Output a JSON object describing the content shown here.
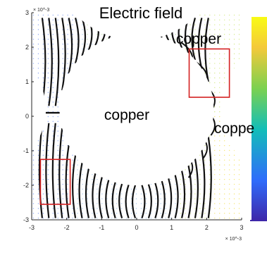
{
  "chart_data": {
    "type": "scatter",
    "title": "Electric field",
    "xlabel": "",
    "ylabel": "",
    "xlim": [
      -3,
      3
    ],
    "ylim": [
      -3,
      3
    ],
    "x_scale_exponent": "× 10^-3",
    "y_scale_exponent": "× 10^-3",
    "x_ticks": [
      "-3",
      "-2",
      "-1",
      "0",
      "1",
      "2",
      "3"
    ],
    "y_ticks": [
      "3",
      "2",
      "1",
      "0",
      "-1",
      "-2",
      "-3"
    ],
    "annotations": [
      "copper",
      "copper",
      "coppe"
    ],
    "grid": false,
    "legend": "none",
    "colormap": "parula",
    "colors": {
      "lines": "#111111",
      "highlight_box": "#d42020",
      "axis": "#262626"
    },
    "regions": [
      {
        "shape": "circle",
        "center": [
          0,
          0.2
        ],
        "radius": 2.2
      },
      {
        "shape": "circle",
        "center": [
          0,
          4.6
        ],
        "radius": 2.4
      },
      {
        "shape": "circle",
        "center": [
          4.4,
          0.2
        ],
        "radius": 2.0
      },
      {
        "shape": "circle",
        "center": [
          -4.5,
          0.2
        ],
        "radius": 1.9
      }
    ],
    "highlight_boxes": [
      {
        "x": [
          1.5,
          2.65
        ],
        "y": [
          0.55,
          1.95
        ]
      },
      {
        "x": [
          -2.75,
          -1.9
        ],
        "y": [
          -2.55,
          -1.25
        ]
      }
    ]
  }
}
